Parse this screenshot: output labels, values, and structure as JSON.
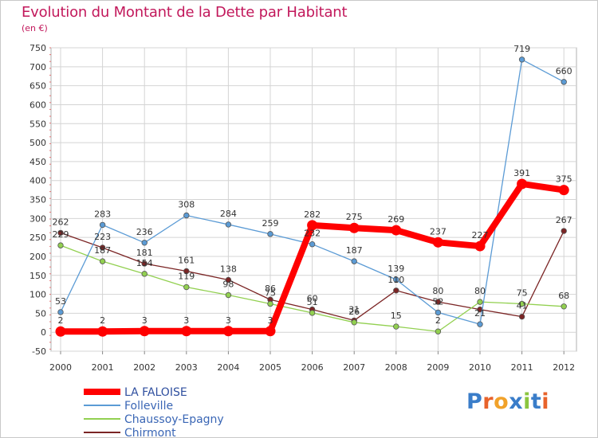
{
  "title": "Evolution du Montant de la Dette par Habitant",
  "subtitle": "(en €)",
  "logo": {
    "text": "Proxiti",
    "colors": [
      "#3a7dc9",
      "#e8632b",
      "#f1a22a",
      "#3a7dc9",
      "#8bc53f",
      "#3a7dc9",
      "#e8632b"
    ]
  },
  "chart_data": {
    "type": "line",
    "title": "Evolution du Montant de la Dette par Habitant",
    "subtitle": "(en €)",
    "xlabel": "",
    "ylabel": "",
    "ylim": [
      -50,
      750
    ],
    "yticks": [
      -50,
      0,
      50,
      100,
      150,
      200,
      250,
      300,
      350,
      400,
      450,
      500,
      550,
      600,
      650,
      700,
      750
    ],
    "x": [
      "2000",
      "2001",
      "2002",
      "2003",
      "2004",
      "2005",
      "2006",
      "2007",
      "2008",
      "2009",
      "2010",
      "2011",
      "2012"
    ],
    "grid": true,
    "legend_position": "bottom-left",
    "series": [
      {
        "name": "LA FALOISE",
        "color": "#ff0000",
        "values": [
          2,
          2,
          3,
          3,
          3,
          3,
          282,
          275,
          269,
          237,
          227,
          391,
          375
        ],
        "labels": [
          "2",
          "2",
          "3",
          "3",
          "3",
          "3",
          "282",
          "275",
          "269",
          "237",
          "227",
          "391",
          "375"
        ]
      },
      {
        "name": "Folleville",
        "color": "#5b9bd5",
        "values": [
          53,
          283,
          236,
          308,
          284,
          259,
          232,
          187,
          139,
          52,
          21,
          719,
          660
        ],
        "labels": [
          "53",
          "283",
          "236",
          "308",
          "284",
          "259",
          "232",
          "187",
          "139",
          "52",
          "21",
          "719",
          "660"
        ]
      },
      {
        "name": "Chaussoy-Epagny",
        "color": "#92d050",
        "values": [
          229,
          187,
          154,
          119,
          98,
          75,
          51,
          26,
          15,
          2,
          80,
          75,
          68
        ],
        "labels": [
          "229",
          "187",
          "154",
          "119",
          "98",
          "75",
          "51",
          "26",
          "15",
          "2",
          "80",
          "75",
          "68"
        ]
      },
      {
        "name": "Chirmont",
        "color": "#7b2525",
        "values": [
          262,
          223,
          181,
          161,
          138,
          86,
          60,
          31,
          110,
          80,
          60,
          41,
          267
        ],
        "labels": [
          "262",
          "223",
          "181",
          "161",
          "138",
          "86",
          "60",
          "31",
          "110",
          "80",
          "",
          "41",
          "267"
        ]
      }
    ]
  }
}
